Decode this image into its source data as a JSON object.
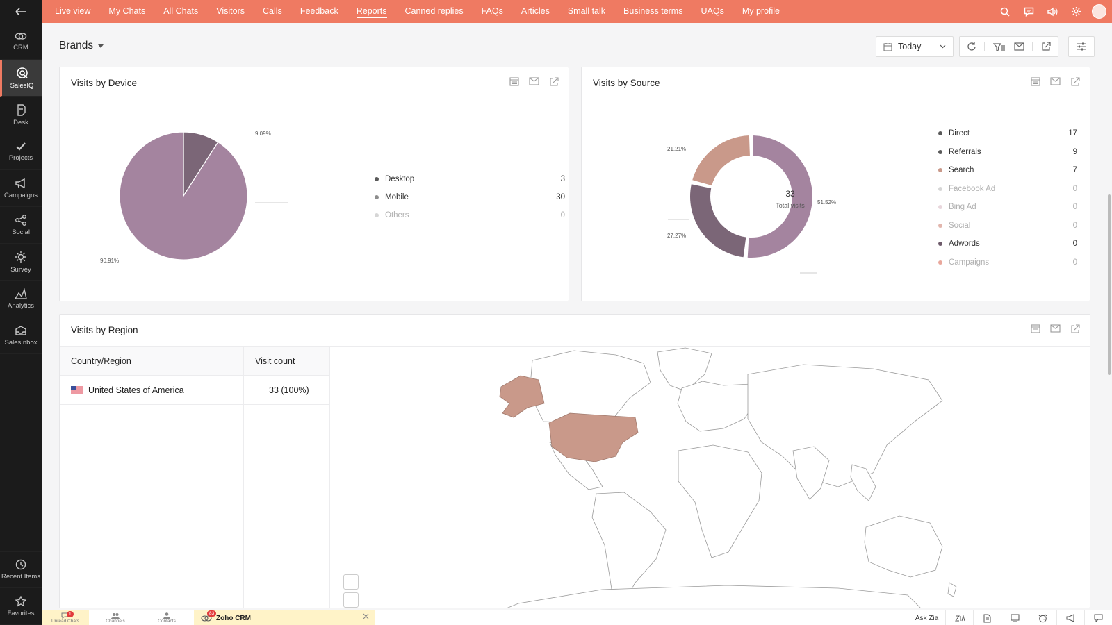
{
  "sidebar": {
    "items": [
      {
        "label": "CRM",
        "icon": "crm-icon",
        "active": false
      },
      {
        "label": "SalesIQ",
        "icon": "salesiq-icon",
        "active": true
      },
      {
        "label": "Desk",
        "icon": "desk-icon",
        "active": false
      },
      {
        "label": "Projects",
        "icon": "projects-icon",
        "active": false
      },
      {
        "label": "Campaigns",
        "icon": "campaigns-icon",
        "active": false
      },
      {
        "label": "Social",
        "icon": "social-icon",
        "active": false
      },
      {
        "label": "Survey",
        "icon": "survey-icon",
        "active": false
      },
      {
        "label": "Analytics",
        "icon": "analytics-icon",
        "active": false
      },
      {
        "label": "SalesInbox",
        "icon": "salesinbox-icon",
        "active": false
      }
    ],
    "bottom": [
      {
        "label": "Recent Items",
        "icon": "recent-items-icon"
      },
      {
        "label": "Favorites",
        "icon": "favorites-icon"
      }
    ]
  },
  "topnav": {
    "items": [
      "Live view",
      "My Chats",
      "All Chats",
      "Visitors",
      "Calls",
      "Feedback",
      "Reports",
      "Canned replies",
      "FAQs",
      "Articles",
      "Small talk",
      "Business terms",
      "UAQs",
      "My profile"
    ],
    "active": "Reports",
    "accent": "#ef7a62"
  },
  "header": {
    "title": "Brands",
    "date_filter": "Today"
  },
  "device_card": {
    "title": "Visits by Device",
    "slices": [
      {
        "name": "Desktop",
        "value": 3,
        "color": "#7b6677"
      },
      {
        "name": "Mobile",
        "value": 30,
        "color": "#a4849f"
      },
      {
        "name": "Others",
        "value": 0,
        "color": "#cfcfcf"
      }
    ],
    "labels": {
      "desktop_pct": "9.09%",
      "mobile_pct": "90.91%"
    }
  },
  "source_card": {
    "title": "Visits by Source",
    "center_value": "33",
    "center_label": "Total visits",
    "slices": [
      {
        "name": "Direct",
        "value": 17,
        "color": "#a4849f"
      },
      {
        "name": "Referrals",
        "value": 9,
        "color": "#7b6677"
      },
      {
        "name": "Search",
        "value": 7,
        "color": "#c9998a"
      },
      {
        "name": "Facebook Ad",
        "value": 0,
        "color": "#d9c4d6"
      },
      {
        "name": "Bing Ad",
        "value": 0,
        "color": "#e8d6dc"
      },
      {
        "name": "Social",
        "value": 0,
        "color": "#e2b6ad"
      },
      {
        "name": "Adwords",
        "value": 0,
        "color": "#6e5b6b"
      },
      {
        "name": "Campaigns",
        "value": 0,
        "color": "#e9a79c"
      }
    ],
    "labels": {
      "direct_pct": "51.52%",
      "referrals_pct": "27.27%",
      "search_pct": "21.21%"
    }
  },
  "region_card": {
    "title": "Visits by Region",
    "columns": [
      "Country/Region",
      "Visit count"
    ],
    "rows": [
      {
        "country": "United States of America",
        "count": "33 (100%)"
      }
    ],
    "highlight_color": "#c9998a"
  },
  "bottombar": {
    "tabs": [
      {
        "label": "Unread Chats",
        "badge": "1"
      },
      {
        "label": "Channels"
      },
      {
        "label": "Contacts"
      }
    ],
    "zoho_tab": {
      "label": "Zoho CRM",
      "badge": "83"
    },
    "ask_zia": "Ask Zia"
  }
}
